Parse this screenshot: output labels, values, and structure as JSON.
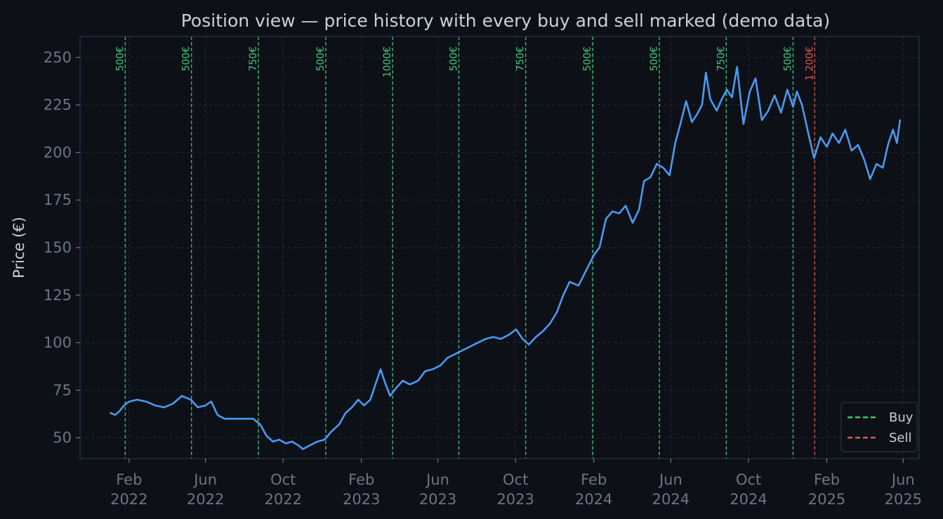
{
  "colors": {
    "background": "#0d1017",
    "frame": "#2a3445",
    "grid": "#232b38",
    "line": "#4a9af0",
    "buy": "#3ec97a",
    "sell": "#e05555",
    "tick_text": "#6b7586",
    "label_text": "#c9d1dc"
  },
  "chart_data": {
    "type": "line",
    "title": "Position view — price history with every buy and sell marked  (demo data)",
    "ylabel": "Price (€)",
    "xlabel": "",
    "xlim": [
      "2021-11-16",
      "2025-06-26"
    ],
    "ylim": [
      39,
      261
    ],
    "grid": true,
    "legend_position": "lower-right",
    "y_ticks": [
      50,
      75,
      100,
      125,
      150,
      175,
      200,
      225,
      250
    ],
    "x_ticks": [
      {
        "date": "2022-02-01",
        "label": [
          "Feb",
          "2022"
        ]
      },
      {
        "date": "2022-06-01",
        "label": [
          "Jun",
          "2022"
        ]
      },
      {
        "date": "2022-10-01",
        "label": [
          "Oct",
          "2022"
        ]
      },
      {
        "date": "2023-02-01",
        "label": [
          "Feb",
          "2023"
        ]
      },
      {
        "date": "2023-06-01",
        "label": [
          "Jun",
          "2023"
        ]
      },
      {
        "date": "2023-10-01",
        "label": [
          "Oct",
          "2023"
        ]
      },
      {
        "date": "2024-02-01",
        "label": [
          "Feb",
          "2024"
        ]
      },
      {
        "date": "2024-06-01",
        "label": [
          "Jun",
          "2024"
        ]
      },
      {
        "date": "2024-10-01",
        "label": [
          "Oct",
          "2024"
        ]
      },
      {
        "date": "2025-02-01",
        "label": [
          "Feb",
          "2025"
        ]
      },
      {
        "date": "2025-06-01",
        "label": [
          "Jun",
          "2025"
        ]
      }
    ],
    "series": [
      {
        "points": [
          [
            "2022-01-03",
            63
          ],
          [
            "2022-01-10",
            62
          ],
          [
            "2022-01-17",
            64
          ],
          [
            "2022-01-24",
            67
          ],
          [
            "2022-02-01",
            69
          ],
          [
            "2022-02-14",
            70
          ],
          [
            "2022-02-28",
            69
          ],
          [
            "2022-03-14",
            67
          ],
          [
            "2022-03-28",
            66
          ],
          [
            "2022-04-11",
            68
          ],
          [
            "2022-04-25",
            72
          ],
          [
            "2022-05-09",
            70
          ],
          [
            "2022-05-20",
            66
          ],
          [
            "2022-06-01",
            67
          ],
          [
            "2022-06-10",
            69
          ],
          [
            "2022-06-20",
            62
          ],
          [
            "2022-07-01",
            60
          ],
          [
            "2022-07-15",
            60
          ],
          [
            "2022-08-01",
            60
          ],
          [
            "2022-08-15",
            60
          ],
          [
            "2022-08-26",
            57
          ],
          [
            "2022-09-05",
            51
          ],
          [
            "2022-09-15",
            48
          ],
          [
            "2022-09-25",
            49
          ],
          [
            "2022-10-05",
            47
          ],
          [
            "2022-10-15",
            48
          ],
          [
            "2022-10-25",
            46
          ],
          [
            "2022-11-01",
            44
          ],
          [
            "2022-11-12",
            46
          ],
          [
            "2022-11-24",
            48
          ],
          [
            "2022-12-05",
            49
          ],
          [
            "2022-12-15",
            53
          ],
          [
            "2022-12-28",
            57
          ],
          [
            "2023-01-07",
            63
          ],
          [
            "2023-01-17",
            66
          ],
          [
            "2023-01-27",
            70
          ],
          [
            "2023-02-05",
            67
          ],
          [
            "2023-02-15",
            70
          ],
          [
            "2023-02-25",
            80
          ],
          [
            "2023-03-03",
            86
          ],
          [
            "2023-03-10",
            79
          ],
          [
            "2023-03-18",
            72
          ],
          [
            "2023-03-27",
            76
          ],
          [
            "2023-04-07",
            80
          ],
          [
            "2023-04-18",
            78
          ],
          [
            "2023-05-01",
            80
          ],
          [
            "2023-05-12",
            85
          ],
          [
            "2023-05-24",
            86
          ],
          [
            "2023-06-05",
            88
          ],
          [
            "2023-06-16",
            92
          ],
          [
            "2023-06-28",
            94
          ],
          [
            "2023-07-10",
            96
          ],
          [
            "2023-07-22",
            98
          ],
          [
            "2023-08-03",
            100
          ],
          [
            "2023-08-15",
            102
          ],
          [
            "2023-08-27",
            103
          ],
          [
            "2023-09-08",
            102
          ],
          [
            "2023-09-20",
            104
          ],
          [
            "2023-10-02",
            107
          ],
          [
            "2023-10-12",
            102
          ],
          [
            "2023-10-22",
            99
          ],
          [
            "2023-11-02",
            103
          ],
          [
            "2023-11-13",
            106
          ],
          [
            "2023-11-24",
            110
          ],
          [
            "2023-12-05",
            116
          ],
          [
            "2023-12-15",
            125
          ],
          [
            "2023-12-25",
            132
          ],
          [
            "2024-01-08",
            130
          ],
          [
            "2024-01-20",
            138
          ],
          [
            "2024-02-01",
            146
          ],
          [
            "2024-02-10",
            150
          ],
          [
            "2024-02-20",
            165
          ],
          [
            "2024-03-01",
            169
          ],
          [
            "2024-03-12",
            168
          ],
          [
            "2024-03-22",
            172
          ],
          [
            "2024-04-02",
            163
          ],
          [
            "2024-04-12",
            170
          ],
          [
            "2024-04-20",
            185
          ],
          [
            "2024-04-30",
            187
          ],
          [
            "2024-05-10",
            194
          ],
          [
            "2024-05-20",
            192
          ],
          [
            "2024-05-30",
            188
          ],
          [
            "2024-06-08",
            205
          ],
          [
            "2024-06-16",
            215
          ],
          [
            "2024-06-25",
            227
          ],
          [
            "2024-07-04",
            216
          ],
          [
            "2024-07-12",
            220
          ],
          [
            "2024-07-20",
            225
          ],
          [
            "2024-07-26",
            242
          ],
          [
            "2024-08-02",
            228
          ],
          [
            "2024-08-12",
            222
          ],
          [
            "2024-08-20",
            228
          ],
          [
            "2024-08-28",
            233
          ],
          [
            "2024-09-05",
            229
          ],
          [
            "2024-09-13",
            245
          ],
          [
            "2024-09-23",
            215
          ],
          [
            "2024-10-03",
            232
          ],
          [
            "2024-10-12",
            239
          ],
          [
            "2024-10-22",
            217
          ],
          [
            "2024-11-01",
            222
          ],
          [
            "2024-11-11",
            230
          ],
          [
            "2024-11-21",
            221
          ],
          [
            "2024-12-01",
            233
          ],
          [
            "2024-12-10",
            224
          ],
          [
            "2024-12-16",
            232
          ],
          [
            "2024-12-24",
            225
          ],
          [
            "2025-01-03",
            210
          ],
          [
            "2025-01-12",
            197
          ],
          [
            "2025-01-22",
            208
          ],
          [
            "2025-02-01",
            203
          ],
          [
            "2025-02-10",
            210
          ],
          [
            "2025-02-20",
            205
          ],
          [
            "2025-03-02",
            212
          ],
          [
            "2025-03-12",
            201
          ],
          [
            "2025-03-22",
            204
          ],
          [
            "2025-04-01",
            196
          ],
          [
            "2025-04-10",
            186
          ],
          [
            "2025-04-20",
            194
          ],
          [
            "2025-04-30",
            192
          ],
          [
            "2025-05-08",
            204
          ],
          [
            "2025-05-16",
            212
          ],
          [
            "2025-05-22",
            205
          ],
          [
            "2025-05-27",
            217
          ]
        ]
      }
    ],
    "transactions": [
      {
        "type": "buy",
        "date": "2022-01-26",
        "label": "500€"
      },
      {
        "type": "buy",
        "date": "2022-05-10",
        "label": "500€"
      },
      {
        "type": "buy",
        "date": "2022-08-23",
        "label": "750€"
      },
      {
        "type": "buy",
        "date": "2022-12-07",
        "label": "500€"
      },
      {
        "type": "buy",
        "date": "2023-03-22",
        "label": "1000€"
      },
      {
        "type": "buy",
        "date": "2023-07-04",
        "label": "500€"
      },
      {
        "type": "buy",
        "date": "2023-10-17",
        "label": "750€"
      },
      {
        "type": "buy",
        "date": "2024-01-30",
        "label": "500€"
      },
      {
        "type": "buy",
        "date": "2024-05-14",
        "label": "500€"
      },
      {
        "type": "buy",
        "date": "2024-08-27",
        "label": "750€"
      },
      {
        "type": "buy",
        "date": "2024-12-10",
        "label": "500€"
      },
      {
        "type": "sell",
        "date": "2025-01-13",
        "label": "1 200€"
      }
    ],
    "legend": [
      {
        "type": "buy",
        "label": "Buy"
      },
      {
        "type": "sell",
        "label": "Sell"
      }
    ]
  }
}
